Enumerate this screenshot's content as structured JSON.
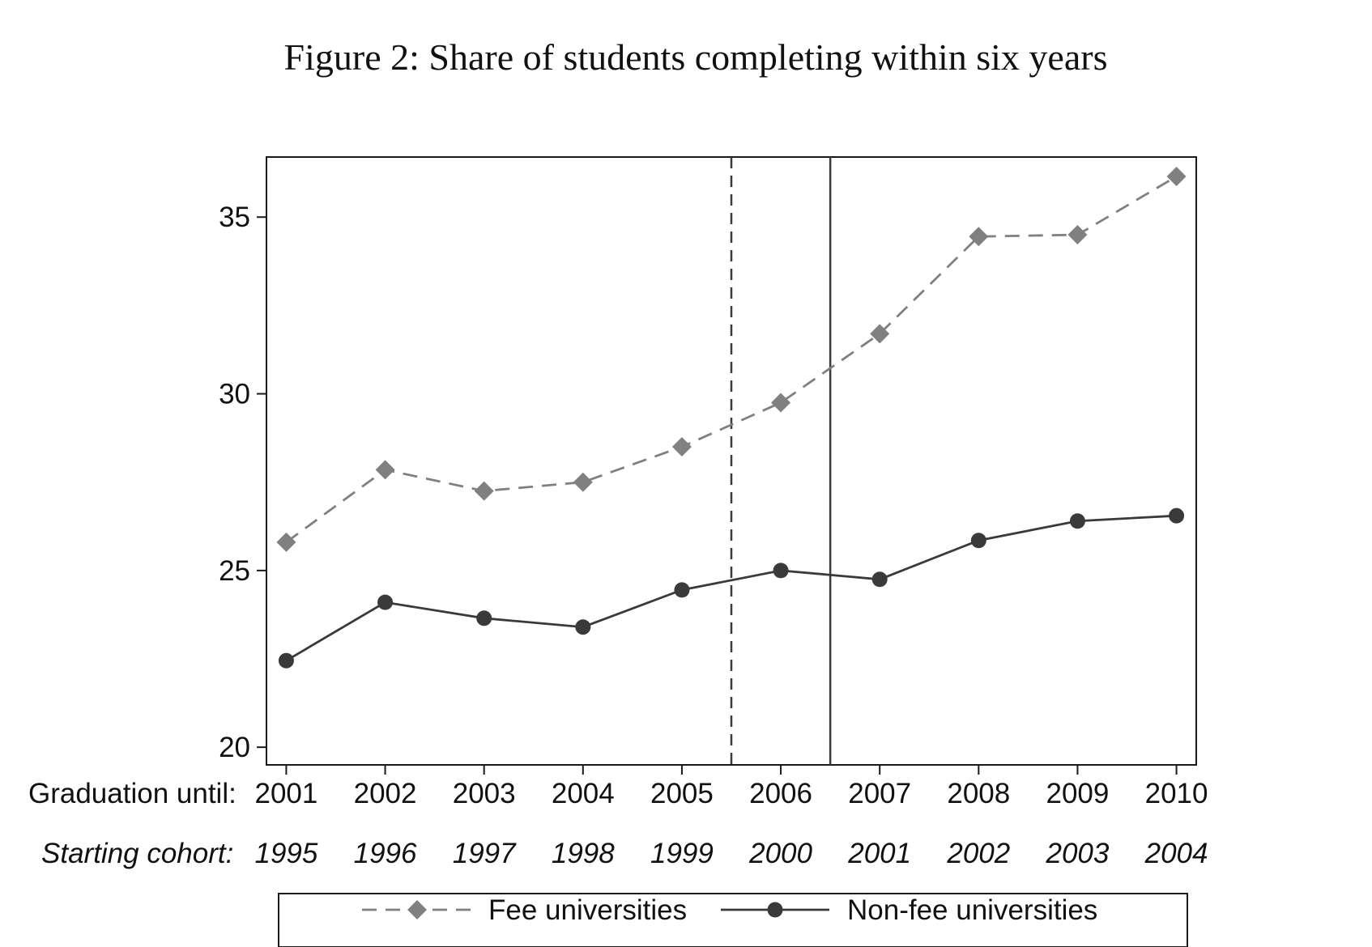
{
  "chart_data": {
    "type": "line",
    "title": "Figure 2: Share of students completing within six years",
    "x_row_labels": {
      "graduation_prefix": "Graduation until:",
      "cohort_prefix": "Starting cohort:"
    },
    "x": [
      2001,
      2002,
      2003,
      2004,
      2005,
      2006,
      2007,
      2008,
      2009,
      2010
    ],
    "x_tick_labels": [
      "2001",
      "2002",
      "2003",
      "2004",
      "2005",
      "2006",
      "2007",
      "2008",
      "2009",
      "2010"
    ],
    "cohort_tick_labels": [
      "1995",
      "1996",
      "1997",
      "1998",
      "1999",
      "2000",
      "2001",
      "2002",
      "2003",
      "2004"
    ],
    "ylim": [
      19.5,
      36.7
    ],
    "xlim": [
      2000.8,
      2010.2
    ],
    "y_ticks": [
      20,
      25,
      30,
      35
    ],
    "y_tick_labels": [
      "20",
      "25",
      "30",
      "35"
    ],
    "series": [
      {
        "name": "Fee universities",
        "color": "#808080",
        "line_style": "dashed",
        "marker": "diamond",
        "values": [
          25.8,
          27.85,
          27.25,
          27.5,
          28.5,
          29.75,
          31.7,
          34.45,
          34.5,
          36.15
        ]
      },
      {
        "name": "Non-fee universities",
        "color": "#3a3a3a",
        "line_style": "solid",
        "marker": "circle",
        "values": [
          22.45,
          24.1,
          23.65,
          23.4,
          24.45,
          25.0,
          24.75,
          25.85,
          26.4,
          26.55
        ]
      }
    ],
    "reference_lines": [
      {
        "x": 2005.5,
        "style": "dashed"
      },
      {
        "x": 2006.5,
        "style": "solid"
      }
    ],
    "grid": false,
    "legend_position": "bottom"
  }
}
